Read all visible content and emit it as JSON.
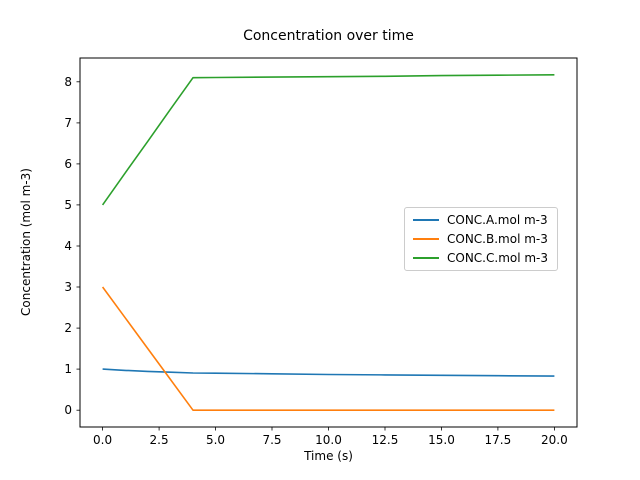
{
  "figure": {
    "background": "#ffffff",
    "frame_color": "#000000",
    "text_color": "#000000"
  },
  "chart_data": {
    "type": "line",
    "title": "Concentration over time",
    "xlabel": "Time (s)",
    "ylabel": "Concentration (mol m-3)",
    "xlim": [
      -1.0,
      21.0
    ],
    "ylim": [
      -0.41,
      8.58
    ],
    "xticks": [
      0.0,
      2.5,
      5.0,
      7.5,
      10.0,
      12.5,
      15.0,
      17.5,
      20.0
    ],
    "xtick_labels": [
      "0.0",
      "2.5",
      "5.0",
      "7.5",
      "10.0",
      "12.5",
      "15.0",
      "17.5",
      "20.0"
    ],
    "yticks": [
      0,
      1,
      2,
      3,
      4,
      5,
      6,
      7,
      8
    ],
    "ytick_labels": [
      "0",
      "1",
      "2",
      "3",
      "4",
      "5",
      "6",
      "7",
      "8"
    ],
    "grid": false,
    "legend_position": "center-right",
    "series": [
      {
        "name": "CONC.A.mol m-3",
        "color": "#1f77b4",
        "x": [
          0,
          1,
          2,
          3,
          4,
          5,
          7.5,
          10,
          12.5,
          15,
          17.5,
          20
        ],
        "y": [
          1.0,
          0.97,
          0.945,
          0.925,
          0.905,
          0.9,
          0.885,
          0.87,
          0.86,
          0.85,
          0.84,
          0.83
        ]
      },
      {
        "name": "CONC.B.mol m-3",
        "color": "#ff7f0e",
        "x": [
          0,
          1,
          2,
          3,
          4,
          5,
          7.5,
          10,
          12.5,
          15,
          17.5,
          20
        ],
        "y": [
          3.0,
          2.25,
          1.5,
          0.75,
          0.0,
          0.0,
          0.0,
          0.0,
          0.0,
          0.0,
          0.0,
          0.0
        ]
      },
      {
        "name": "CONC.C.mol m-3",
        "color": "#2ca02c",
        "x": [
          0,
          1,
          2,
          3,
          4,
          5,
          7.5,
          10,
          12.5,
          15,
          17.5,
          20
        ],
        "y": [
          5.0,
          5.78,
          6.55,
          7.33,
          8.1,
          8.105,
          8.115,
          8.125,
          8.135,
          8.15,
          8.16,
          8.17
        ]
      }
    ]
  }
}
